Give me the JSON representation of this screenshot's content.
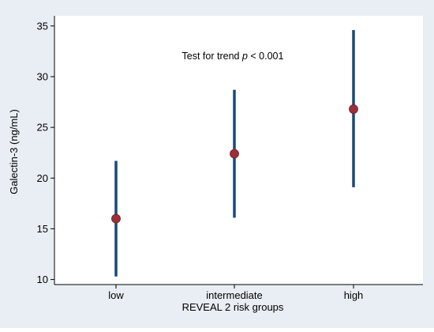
{
  "chart_data": {
    "type": "scatter",
    "xlabel": "REVEAL 2 risk groups",
    "ylabel": "Galectin-3 (ng/mL)",
    "ylim": [
      9.5,
      36
    ],
    "yticks": [
      10,
      15,
      20,
      25,
      30,
      35
    ],
    "categories": [
      "low",
      "intermediate",
      "high"
    ],
    "series": [
      {
        "values": [
          16.0,
          22.4,
          26.8
        ],
        "lower": [
          10.3,
          16.1,
          19.1
        ],
        "upper": [
          21.7,
          28.7,
          34.6
        ]
      }
    ],
    "annotation": {
      "prefix": "Test for trend ",
      "italic": "p",
      "suffix": " < 0.001"
    },
    "colors": {
      "background": "#e8eef3",
      "plot": "#ffffff",
      "errorbar": "#1a4a73",
      "marker": "#9b2f3a"
    },
    "grid": false
  }
}
